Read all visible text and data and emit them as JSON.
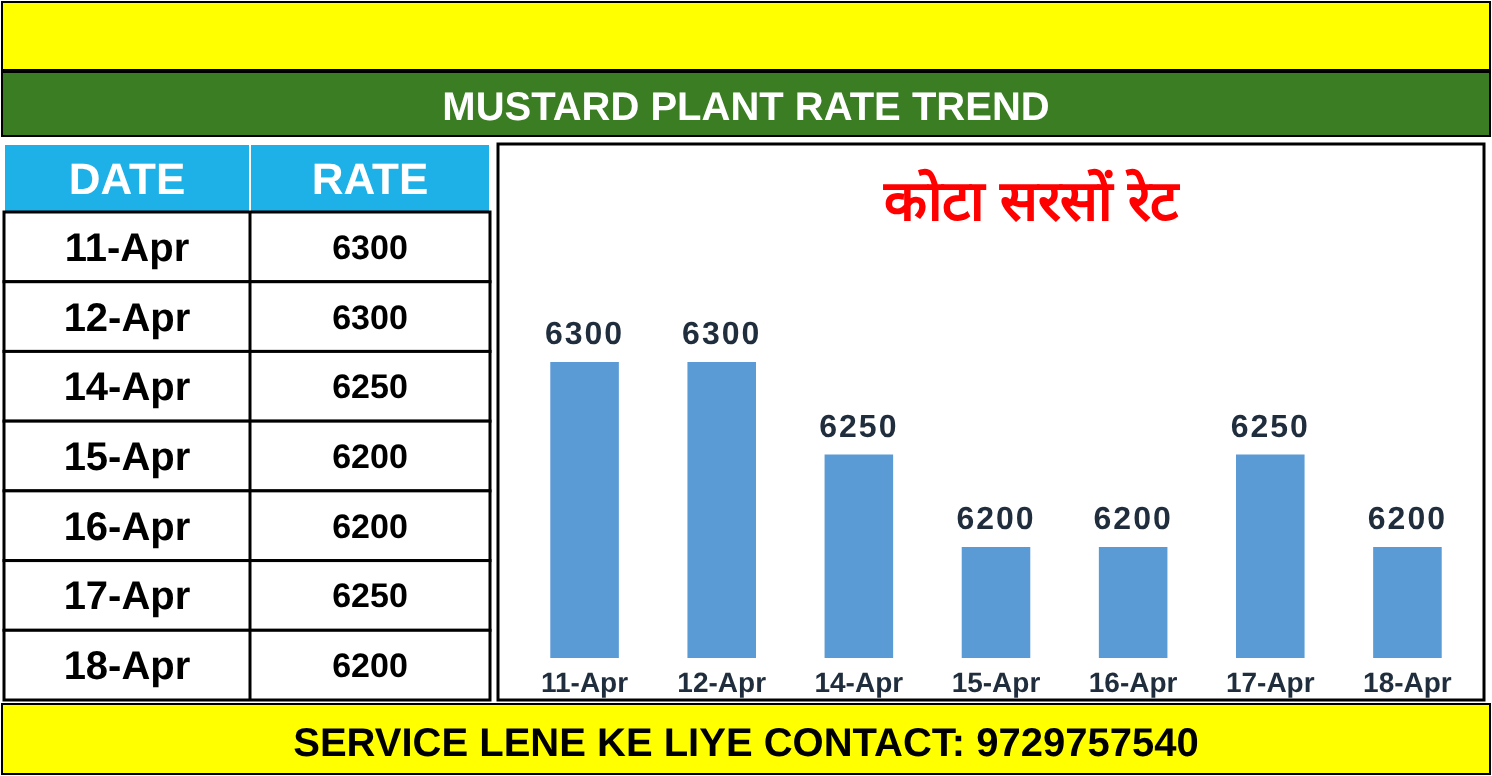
{
  "chart_data": [
    {
      "type": "bar",
      "title": "MUSTARD PLANT RATE TREND",
      "subtitle": "कोटा सरसों रेट",
      "categories": [
        "11-Apr",
        "12-Apr",
        "14-Apr",
        "15-Apr",
        "16-Apr",
        "17-Apr",
        "18-Apr"
      ],
      "values": [
        6300,
        6300,
        6250,
        6200,
        6200,
        6250,
        6200
      ],
      "color": "#5b9bd5",
      "ylim": [
        6140,
        6300
      ],
      "data_labels": true,
      "annotations": [
        "SERVICE LENE KE LIYE CONTACT: 9729757540"
      ]
    },
    {
      "type": "other",
      "xlabel": "DATE",
      "ylabel": "RATE",
      "categories": [
        "11-Apr",
        "12-Apr",
        "14-Apr",
        "15-Apr",
        "16-Apr",
        "17-Apr",
        "18-Apr"
      ],
      "values": [
        6300,
        6300,
        6250,
        6200,
        6200,
        6250,
        6200
      ],
      "data_labels": true
    }
  ]
}
